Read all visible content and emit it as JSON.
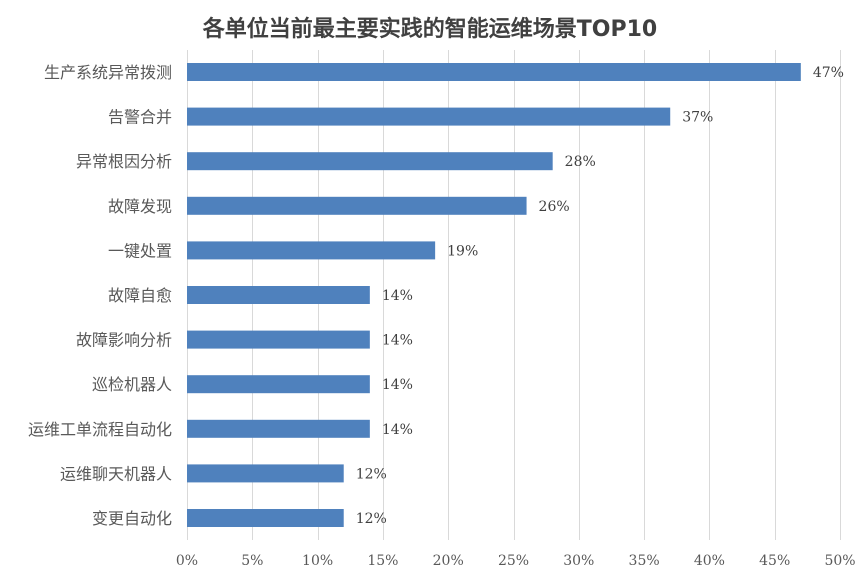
{
  "chart_data": {
    "type": "bar",
    "orientation": "horizontal",
    "title": "各单位当前最主要实践的智能运维场景TOP10",
    "categories": [
      "生产系统异常拨测",
      "告警合并",
      "异常根因分析",
      "故障发现",
      "一键处置",
      "故障自愈",
      "故障影响分析",
      "巡检机器人",
      "运维工单流程自动化",
      "运维聊天机器人",
      "变更自动化"
    ],
    "values": [
      47,
      37,
      28,
      26,
      19,
      14,
      14,
      14,
      14,
      12,
      12
    ],
    "value_suffix": "%",
    "xlim": [
      0,
      50
    ],
    "xticks": [
      0,
      5,
      10,
      15,
      20,
      25,
      30,
      35,
      40,
      45,
      50
    ],
    "xtick_labels": [
      "0%",
      "5%",
      "10%",
      "15%",
      "20%",
      "25%",
      "30%",
      "35%",
      "40%",
      "45%",
      "50%"
    ],
    "grid": true,
    "colors": {
      "bar": "#4f81bd",
      "grid": "#d9d9d9"
    }
  }
}
